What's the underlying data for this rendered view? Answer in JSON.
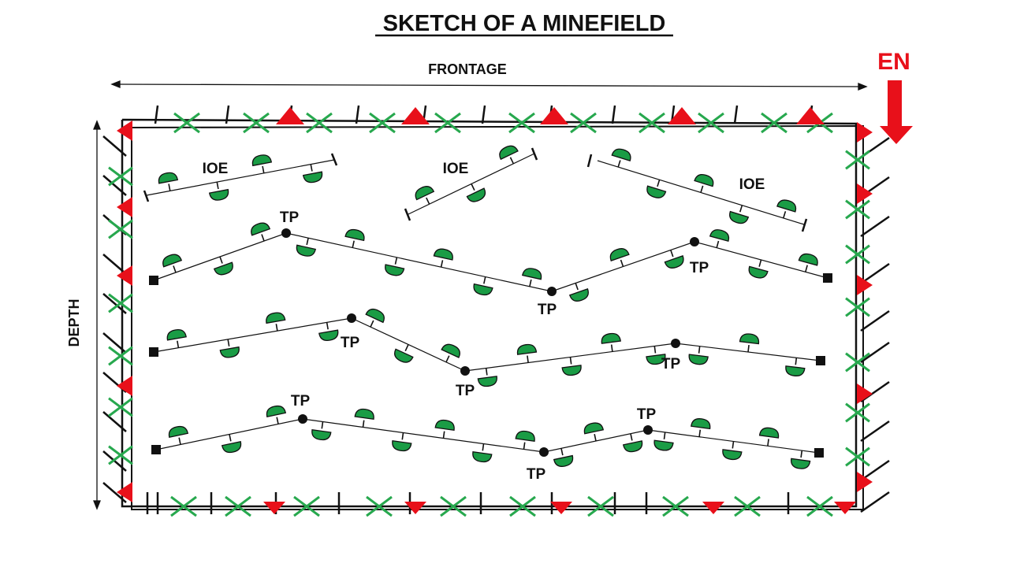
{
  "title": "SKETCH OF A MINEFIELD",
  "frontage_label": "FRONTAGE",
  "depth_label": "DEPTH",
  "enemy_label": "EN",
  "ioe_label": "IOE",
  "tp_label": "TP",
  "colors": {
    "mine": "#1a9c45",
    "wire_cross": "#27a84e",
    "marker": "#e8101a",
    "enemy": "#e8101a",
    "line": "#111111"
  },
  "icons": {
    "anti_personnel_mine": "mushroom-mine-icon",
    "wire_obstacle": "cross-icon",
    "warning_marker": "red-triangle-icon",
    "turning_point": "black-dot-icon",
    "row_end": "black-square-icon",
    "enemy_direction": "arrow-down-icon"
  }
}
